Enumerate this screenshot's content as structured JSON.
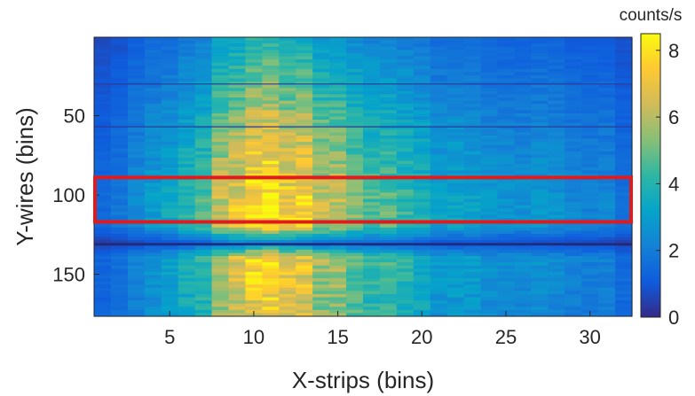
{
  "chart_data": {
    "type": "heatmap",
    "title": "",
    "xlabel": "X-strips (bins)",
    "ylabel": "Y-wires (bins)",
    "xlim": [
      0.5,
      32.5
    ],
    "ylim": [
      0.5,
      176.5
    ],
    "y_direction": "reversed",
    "x_ticks": [
      5,
      10,
      15,
      20,
      25,
      30
    ],
    "y_ticks": [
      50,
      100,
      150
    ],
    "colorbar": {
      "label": "counts/s",
      "colormap": "parula",
      "range": [
        0,
        8.5
      ],
      "ticks": [
        0,
        2,
        4,
        6,
        8
      ]
    },
    "x_bins": 32,
    "y_bins": 176,
    "column_profile_counts_per_s": [
      1.2,
      1.6,
      2.0,
      2.3,
      2.7,
      3.3,
      4.1,
      5.0,
      5.8,
      6.4,
      6.7,
      6.5,
      6.1,
      5.6,
      5.1,
      4.7,
      4.2,
      3.8,
      3.4,
      3.1,
      2.9,
      2.8,
      2.6,
      2.5,
      2.4,
      2.3,
      2.2,
      2.1,
      2.0,
      1.9,
      1.8,
      1.5
    ],
    "row_profile_relative": {
      "rows": [
        1,
        20,
        40,
        60,
        80,
        100,
        110,
        120,
        131,
        140,
        160,
        176
      ],
      "factor": [
        0.55,
        0.68,
        0.8,
        0.95,
        1.05,
        1.15,
        1.2,
        1.15,
        0.3,
        1.1,
        1.05,
        1.0
      ]
    },
    "dark_row_lines_y": [
      30,
      57,
      131
    ],
    "highlight_box": {
      "x_range": [
        0.5,
        32.5
      ],
      "y_range": [
        89,
        117
      ],
      "color": "#e31a1c"
    }
  }
}
